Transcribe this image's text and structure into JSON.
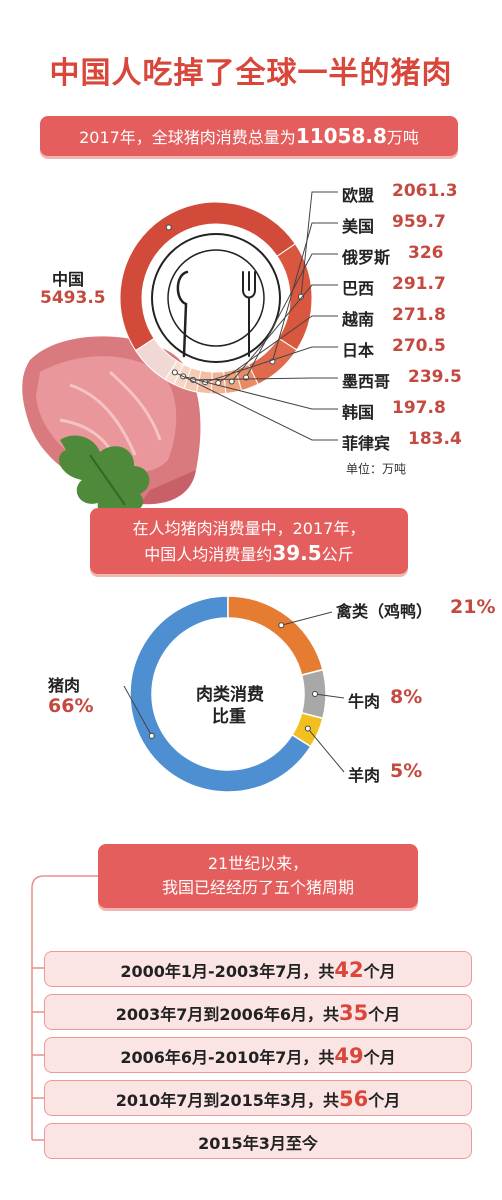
{
  "title": "中国人吃掉了全球一半的猪肉",
  "banner1": {
    "pre": "2017年，全球猪肉消费总量为",
    "value": "11058.8",
    "post": "万吨"
  },
  "banner2": {
    "line1": "在人均猪肉消费量中，2017年，",
    "line2_pre": "中国人均消费量约",
    "line2_value": "39.5",
    "line2_post": "公斤"
  },
  "banner3": {
    "line1": "21世纪以来，",
    "line2": "我国已经经历了五个猪周期"
  },
  "unit_label": "单位：万吨",
  "colors": {
    "accent": "#d9463a",
    "banner": "#e45e5d",
    "ring_main": "#d24b3a",
    "ring_light": "#f0d8d4"
  },
  "chart_data": [
    {
      "type": "pie",
      "title": "",
      "unit": "万吨",
      "total": 11058.8,
      "labels": [
        "中国",
        "欧盟",
        "美国",
        "俄罗斯",
        "巴西",
        "越南",
        "日本",
        "墨西哥",
        "韩国",
        "菲律宾"
      ],
      "display_values": [
        "5493.5",
        "2061.3",
        "959.7",
        "326",
        "291.7",
        "271.8",
        "270.5",
        "239.5",
        "197.8",
        "183.4"
      ],
      "values": [
        5493.5,
        2061.3,
        959.7,
        326,
        291.7,
        271.8,
        270.5,
        239.5,
        197.8,
        183.4
      ]
    },
    {
      "type": "pie",
      "title": "肉类消费比重",
      "center_line1": "肉类消费",
      "center_line2": "比重",
      "labels": [
        "猪肉",
        "禽类（鸡鸭）",
        "牛肉",
        "羊肉"
      ],
      "display_values": [
        "66%",
        "21%",
        "8%",
        "5%"
      ],
      "values": [
        66,
        21,
        8,
        5
      ],
      "colors": [
        "#4e8fd1",
        "#e57c31",
        "#a8a8a8",
        "#f2c01e"
      ]
    }
  ],
  "periods": [
    {
      "pre": "2000年1月-2003年7月，共",
      "n": "42",
      "post": "个月"
    },
    {
      "pre": "2003年7月到2006年6月，共",
      "n": "35",
      "post": "个月"
    },
    {
      "pre": "2006年6月-2010年7月，共",
      "n": "49",
      "post": "个月"
    },
    {
      "pre": "2010年7月到2015年3月，共",
      "n": "56",
      "post": "个月"
    },
    {
      "pre": "2015年3月至今",
      "n": "",
      "post": ""
    }
  ]
}
